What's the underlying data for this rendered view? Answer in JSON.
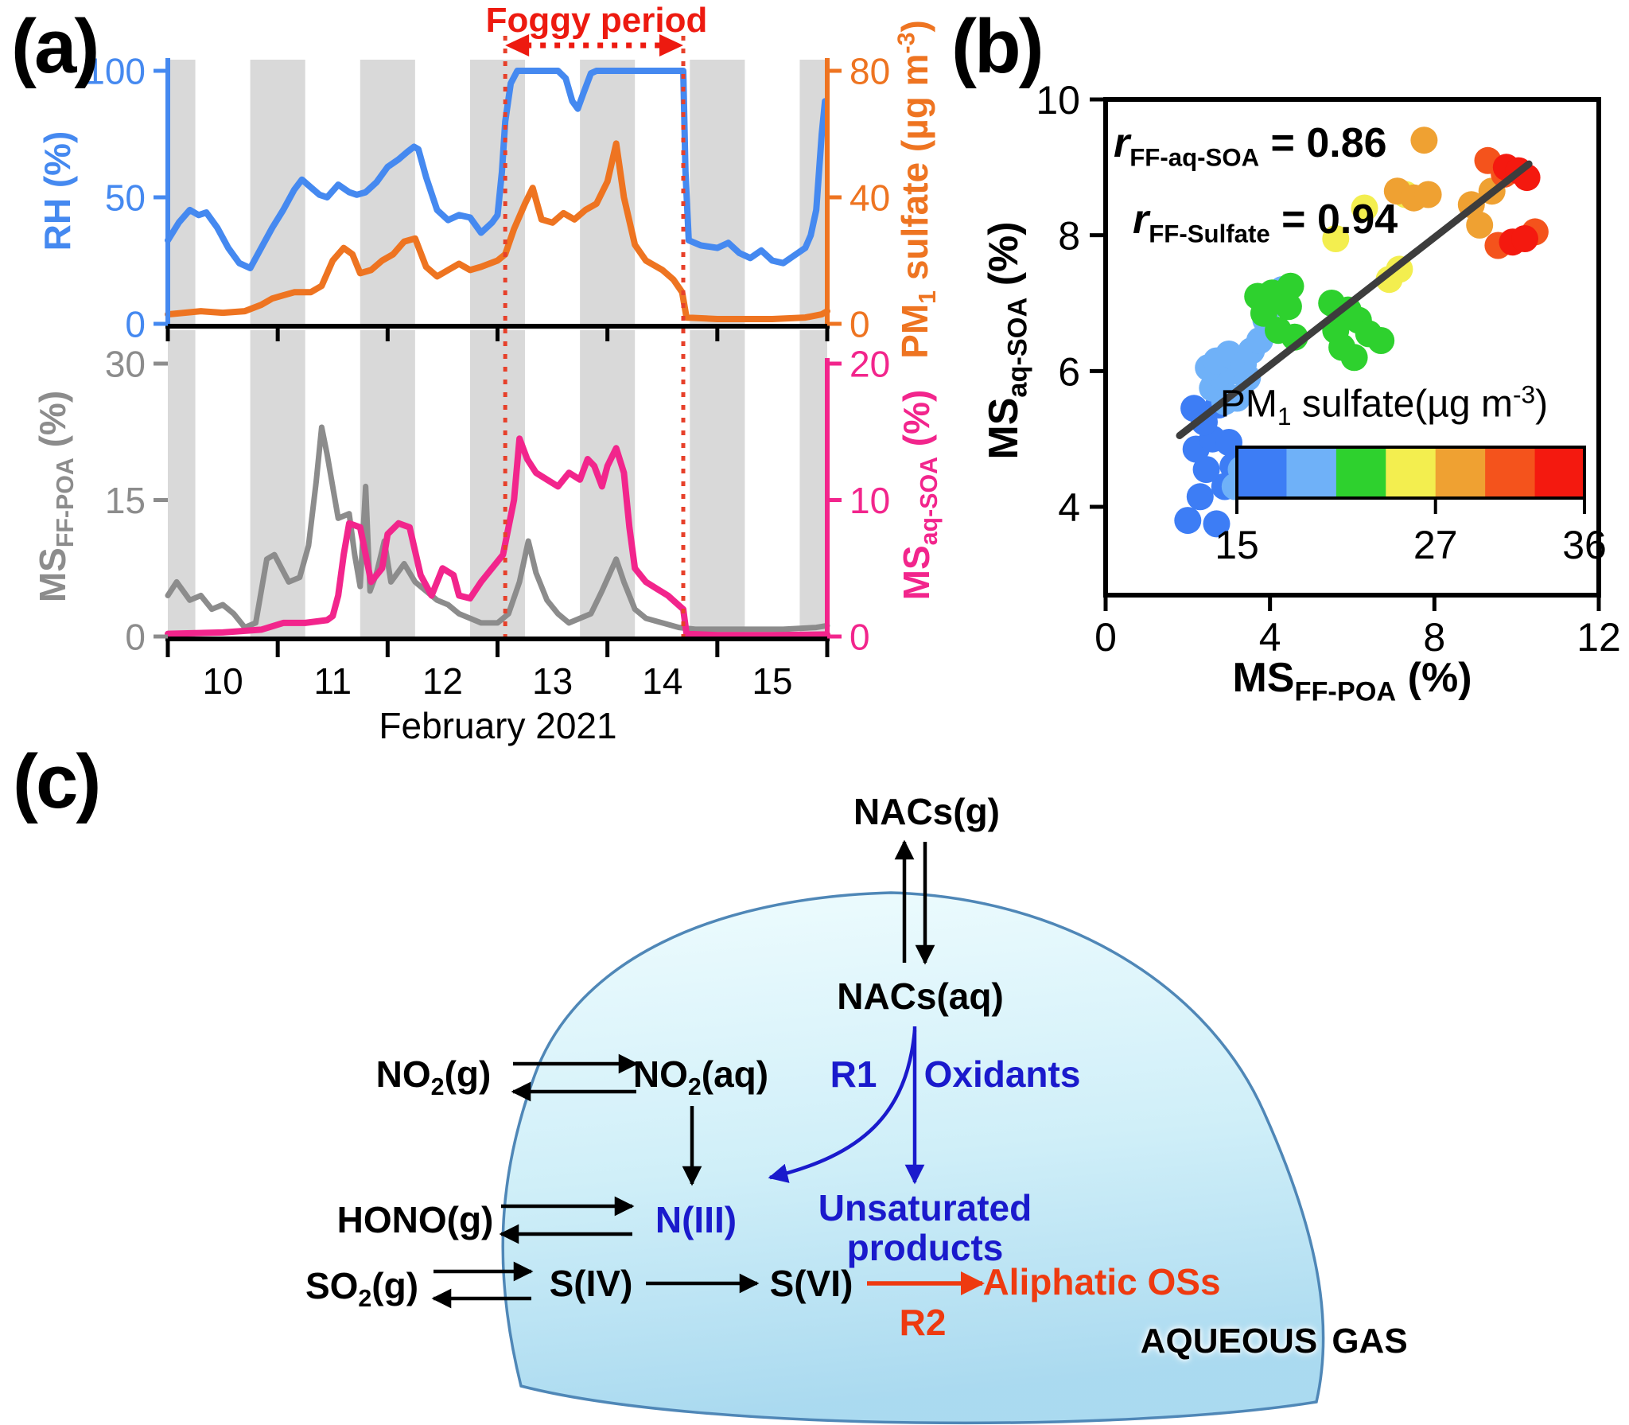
{
  "colors": {
    "rh_line": "#4589f0",
    "sulfate_line": "#ee7421",
    "poa_line": "#8c8c8c",
    "soa_line": "#f2258c",
    "fog_red": "#ed1a10",
    "fog_dash": "#e7402a",
    "band_gray": "#d9d9d9",
    "fit_line": "#3d3d3d",
    "axis_black": "#000000",
    "scatter_palette": [
      "#3d7df5",
      "#6fb1f8",
      "#2ed12e",
      "#f3ee4f",
      "#efa132",
      "#f4531c",
      "#f4190f"
    ],
    "diagram_blue": "#1a1acc",
    "diagram_red": "#ee3a10",
    "dome_fill_top": "#eefcfe",
    "dome_fill_mid": "#cdeef8",
    "dome_fill_bottom": "#a6d8ef",
    "dome_edge": "#4f87b7"
  },
  "panel_a": {
    "label": "(a)",
    "fog_label": "Foggy period",
    "x_label": "February 2021",
    "left_top_axis": {
      "label": "RH (%)"
    },
    "right_top_axis": {
      "pre": "PM",
      "sub": "1",
      "mid": " sulfate (µg m",
      "sup": "-3",
      "post": ")"
    },
    "left_bottom_axis": {
      "pre": "MS",
      "sub": "FF-POA",
      "post": " (%)"
    },
    "right_bottom_axis": {
      "pre": "MS",
      "sub": "aq-SOA",
      "post": " (%)"
    }
  },
  "panel_b": {
    "label": "(b)",
    "corr1": {
      "r": "r",
      "sub": "FF-aq-SOA",
      "val": " = 0.86"
    },
    "corr2": {
      "r": "r",
      "sub": "FF-Sulfate",
      "val": " = 0.94"
    },
    "x_axis": {
      "pre": "MS",
      "sub": "FF-POA",
      "post": " (%)"
    },
    "y_axis": {
      "pre": "MS",
      "sub": "aq-SOA",
      "post": " (%)"
    },
    "legend_title": {
      "pre": "PM",
      "sub": "1",
      "mid": " sulfate(µg m",
      "sup": "-3",
      "post": ")"
    }
  },
  "panel_c": {
    "label": "(c)",
    "nodes": {
      "nacs_g": {
        "text": "NACs(g)"
      },
      "nacs_aq": {
        "text": "NACs(aq)"
      },
      "no2_g": {
        "pre": "NO",
        "sub": "2",
        "post": "(g)"
      },
      "no2_aq": {
        "pre": "NO",
        "sub": "2",
        "post": "(aq)"
      },
      "r1": {
        "text": "R1"
      },
      "oxidants": {
        "text": "Oxidants"
      },
      "hono_g": {
        "text": "HONO(g)"
      },
      "n_iii": {
        "text": "N(III)"
      },
      "unsat_1": {
        "text": "Unsaturated"
      },
      "unsat_2": {
        "text": "products"
      },
      "so2_g": {
        "pre": "SO",
        "sub": "2",
        "post": "(g)"
      },
      "s_iv": {
        "text": "S(IV)"
      },
      "s_vi": {
        "text": "S(VI)"
      },
      "aliphatic": {
        "text": "Aliphatic OSs"
      },
      "r2": {
        "text": "R2"
      },
      "aqueous": {
        "text": "AQUEOUS"
      },
      "gas": {
        "text": "GAS"
      }
    }
  },
  "chart_data": [
    {
      "id": "a-top",
      "type": "line",
      "xlim": [
        10.0,
        16.0
      ],
      "day_ticks": [
        10,
        11,
        12,
        13,
        14,
        15,
        16
      ],
      "day_labels": [
        "10",
        "11",
        "12",
        "13",
        "14",
        "15"
      ],
      "xlabel": "February 2021",
      "night_bands": [
        [
          10.0,
          10.25
        ],
        [
          10.75,
          11.25
        ],
        [
          11.75,
          12.25
        ],
        [
          12.75,
          13.25
        ],
        [
          13.75,
          14.25
        ],
        [
          14.75,
          15.25
        ],
        [
          15.75,
          16.0
        ]
      ],
      "fog_span": [
        13.07,
        14.69
      ],
      "series": [
        {
          "name": "RH",
          "axis": "left",
          "ylabel": "RH (%)",
          "ylim": [
            0,
            100
          ],
          "yticks": [
            0,
            50,
            100
          ],
          "x": [
            10.0,
            10.1,
            10.2,
            10.28,
            10.35,
            10.45,
            10.55,
            10.65,
            10.75,
            10.85,
            10.95,
            11.05,
            11.15,
            11.22,
            11.3,
            11.38,
            11.45,
            11.55,
            11.65,
            11.72,
            11.8,
            11.9,
            12.0,
            12.1,
            12.18,
            12.24,
            12.28,
            12.35,
            12.45,
            12.55,
            12.65,
            12.75,
            12.85,
            12.95,
            13.0,
            13.04,
            13.07,
            13.12,
            13.18,
            13.3,
            13.45,
            13.55,
            13.62,
            13.68,
            13.73,
            13.78,
            13.85,
            13.9,
            14.1,
            14.3,
            14.5,
            14.69,
            14.71,
            14.74,
            14.85,
            15.0,
            15.1,
            15.2,
            15.3,
            15.4,
            15.5,
            15.6,
            15.7,
            15.8,
            15.85,
            15.9,
            15.95,
            15.98
          ],
          "y": [
            33,
            40,
            45,
            43,
            44,
            38,
            30,
            24,
            22,
            30,
            38,
            45,
            53,
            57,
            54,
            51,
            50,
            55,
            52,
            51,
            52,
            56,
            62,
            65,
            68,
            70,
            69,
            58,
            45,
            41,
            43,
            42,
            36,
            40,
            43,
            60,
            80,
            95,
            100,
            100,
            100,
            100,
            97,
            88,
            85,
            91,
            99,
            100,
            100,
            100,
            100,
            100,
            60,
            33,
            31,
            30,
            32,
            28,
            26,
            29,
            25,
            24,
            27,
            30,
            35,
            45,
            75,
            88
          ]
        },
        {
          "name": "PM1 sulfate",
          "axis": "right",
          "ylabel": "PM1 sulfate (µg m-3)",
          "ylim": [
            0,
            80
          ],
          "yticks": [
            0,
            40,
            80
          ],
          "x": [
            10.0,
            10.3,
            10.5,
            10.7,
            10.85,
            10.95,
            11.05,
            11.15,
            11.3,
            11.4,
            11.5,
            11.6,
            11.68,
            11.75,
            11.85,
            11.95,
            12.05,
            12.15,
            12.25,
            12.35,
            12.45,
            12.55,
            12.65,
            12.75,
            12.85,
            13.0,
            13.07,
            13.15,
            13.25,
            13.32,
            13.4,
            13.5,
            13.6,
            13.7,
            13.8,
            13.9,
            14.0,
            14.08,
            14.15,
            14.25,
            14.35,
            14.5,
            14.6,
            14.68,
            14.72,
            15.0,
            15.5,
            15.8,
            15.95,
            16.0
          ],
          "y": [
            3,
            4,
            3.5,
            4,
            6,
            8,
            9,
            10,
            10,
            12,
            20,
            24,
            22,
            16,
            17,
            20,
            22,
            26,
            27,
            18,
            15,
            17,
            19,
            17,
            18,
            20,
            22,
            30,
            38,
            43,
            33,
            32,
            35,
            33,
            36,
            38,
            45,
            57,
            40,
            25,
            20,
            17,
            14,
            10,
            2,
            1.5,
            1.5,
            2,
            3,
            4
          ]
        }
      ]
    },
    {
      "id": "a-bottom",
      "type": "line",
      "xlim": [
        10.0,
        16.0
      ],
      "series": [
        {
          "name": "MS FF-POA",
          "axis": "left",
          "ylabel": "MS_FF-POA (%)",
          "ylim": [
            0,
            30
          ],
          "yticks": [
            0,
            15,
            30
          ],
          "x": [
            10.0,
            10.08,
            10.2,
            10.3,
            10.4,
            10.5,
            10.6,
            10.7,
            10.8,
            10.9,
            10.97,
            11.1,
            11.2,
            11.28,
            11.35,
            11.4,
            11.45,
            11.55,
            11.65,
            11.7,
            11.75,
            11.8,
            11.84,
            11.9,
            11.97,
            12.03,
            12.15,
            12.25,
            12.35,
            12.45,
            12.55,
            12.65,
            12.75,
            12.85,
            13.0,
            13.1,
            13.2,
            13.28,
            13.35,
            13.45,
            13.55,
            13.65,
            13.75,
            13.85,
            13.95,
            14.08,
            14.15,
            14.25,
            14.35,
            14.5,
            14.65,
            14.8,
            15.2,
            15.6,
            15.9,
            16.0
          ],
          "y": [
            4.5,
            6,
            4,
            4.5,
            3,
            3.5,
            2.5,
            1,
            1.5,
            8.5,
            9,
            6,
            6.5,
            10,
            17,
            23,
            20,
            13,
            13.5,
            9,
            5.5,
            16.5,
            5,
            7,
            10.5,
            6,
            8,
            6,
            5,
            4,
            3.5,
            2.5,
            2,
            1.5,
            1.5,
            2.5,
            6,
            10.5,
            7,
            4,
            2.5,
            1.5,
            2,
            2.5,
            5,
            8.5,
            6,
            3,
            2,
            1.5,
            1,
            0.8,
            0.8,
            0.8,
            1,
            1.2
          ]
        },
        {
          "name": "MS aq-SOA",
          "axis": "right",
          "ylabel": "MS_aq-SOA (%)",
          "ylim": [
            0,
            20
          ],
          "yticks": [
            0,
            10,
            20
          ],
          "x": [
            10.0,
            10.5,
            10.85,
            11.05,
            11.25,
            11.45,
            11.5,
            11.55,
            11.6,
            11.65,
            11.75,
            11.85,
            11.95,
            12.0,
            12.1,
            12.2,
            12.3,
            12.4,
            12.5,
            12.6,
            12.65,
            12.75,
            12.85,
            12.95,
            13.05,
            13.1,
            13.15,
            13.2,
            13.27,
            13.35,
            13.45,
            13.55,
            13.65,
            13.75,
            13.82,
            13.88,
            13.95,
            14.0,
            14.08,
            14.15,
            14.2,
            14.25,
            14.35,
            14.45,
            14.55,
            14.62,
            14.69,
            14.72,
            15.0,
            15.5,
            16.0
          ],
          "y": [
            0.2,
            0.3,
            0.5,
            1,
            1,
            1.2,
            1.5,
            3,
            6,
            8.3,
            8,
            4,
            5,
            7.5,
            8.3,
            8,
            4.5,
            3,
            5,
            4.5,
            3,
            2.8,
            4,
            5,
            6,
            8,
            10,
            14.5,
            13,
            12,
            11.5,
            11,
            12,
            11.5,
            13,
            12.5,
            11,
            12.5,
            13.8,
            12,
            8,
            5,
            4,
            3.5,
            3,
            2.5,
            2,
            0.2,
            0.1,
            0.1,
            0.15
          ]
        }
      ]
    },
    {
      "id": "b-scatter",
      "type": "scatter",
      "xlabel": "MS_FF-POA (%)",
      "ylabel": "MS_aq-SOA (%)",
      "xlim": [
        0,
        12
      ],
      "x_ticks": [
        0,
        4,
        8,
        12
      ],
      "ylim": [
        2.7,
        10
      ],
      "y_ticks": [
        4,
        6,
        8,
        10
      ],
      "r_ff_aq_soa": 0.86,
      "r_ff_sulfate": 0.94,
      "fit_line": {
        "x1": 1.8,
        "y1": 5.05,
        "x2": 10.3,
        "y2": 9.05
      },
      "colorbar": {
        "title": "PM1 sulfate(µg m-3)",
        "min": 15,
        "max": 36,
        "ticks": [
          15,
          27,
          36
        ],
        "bins": [
          15,
          18,
          21,
          24,
          27,
          30,
          33,
          36
        ]
      },
      "points": [
        [
          2.0,
          3.8,
          16
        ],
        [
          2.7,
          3.75,
          16
        ],
        [
          2.3,
          4.15,
          16
        ],
        [
          2.9,
          4.3,
          16
        ],
        [
          2.45,
          4.55,
          16
        ],
        [
          3.1,
          4.6,
          16
        ],
        [
          2.2,
          4.85,
          16
        ],
        [
          2.6,
          5.0,
          16
        ],
        [
          3.0,
          4.95,
          16
        ],
        [
          2.4,
          5.25,
          16
        ],
        [
          2.15,
          5.45,
          16
        ],
        [
          2.75,
          5.5,
          16
        ],
        [
          3.3,
          4.55,
          19
        ],
        [
          3.15,
          4.3,
          19
        ],
        [
          2.9,
          5.55,
          19
        ],
        [
          3.2,
          5.6,
          19
        ],
        [
          2.6,
          5.75,
          19
        ],
        [
          2.85,
          5.9,
          19
        ],
        [
          3.1,
          6.0,
          19
        ],
        [
          2.5,
          6.05,
          19
        ],
        [
          2.7,
          6.15,
          19
        ],
        [
          3.0,
          6.25,
          19
        ],
        [
          3.35,
          6.1,
          19
        ],
        [
          3.55,
          6.3,
          19
        ],
        [
          3.75,
          6.45,
          19
        ],
        [
          3.45,
          5.9,
          19
        ],
        [
          4.3,
          7.2,
          19
        ],
        [
          3.9,
          6.75,
          19
        ],
        [
          3.7,
          7.1,
          22
        ],
        [
          4.05,
          7.15,
          22
        ],
        [
          4.5,
          7.25,
          22
        ],
        [
          3.85,
          6.85,
          22
        ],
        [
          4.2,
          6.6,
          22
        ],
        [
          4.45,
          6.95,
          22
        ],
        [
          4.6,
          6.5,
          22
        ],
        [
          5.5,
          7.0,
          22
        ],
        [
          5.9,
          6.9,
          22
        ],
        [
          6.15,
          6.75,
          22
        ],
        [
          6.4,
          6.55,
          22
        ],
        [
          6.7,
          6.45,
          22
        ],
        [
          5.75,
          6.35,
          22
        ],
        [
          6.05,
          6.2,
          22
        ],
        [
          5.6,
          6.6,
          22
        ],
        [
          5.6,
          7.95,
          25
        ],
        [
          6.3,
          8.4,
          25
        ],
        [
          7.3,
          8.6,
          25
        ],
        [
          6.9,
          7.35,
          25
        ],
        [
          7.15,
          7.5,
          25
        ],
        [
          7.75,
          9.4,
          28
        ],
        [
          7.1,
          8.65,
          28
        ],
        [
          7.5,
          8.55,
          28
        ],
        [
          7.85,
          8.6,
          28
        ],
        [
          8.9,
          8.45,
          28
        ],
        [
          9.4,
          8.65,
          28
        ],
        [
          9.1,
          8.15,
          28
        ],
        [
          9.3,
          9.1,
          31
        ],
        [
          9.55,
          7.85,
          31
        ],
        [
          10.45,
          8.05,
          31
        ],
        [
          9.7,
          8.9,
          31
        ],
        [
          9.75,
          9.0,
          34
        ],
        [
          10.05,
          8.95,
          34
        ],
        [
          10.25,
          8.85,
          34
        ],
        [
          9.9,
          7.9,
          34
        ],
        [
          10.2,
          7.95,
          34
        ]
      ]
    }
  ]
}
